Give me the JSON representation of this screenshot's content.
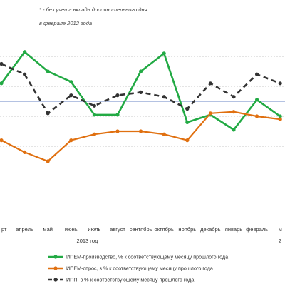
{
  "chart_data": {
    "type": "line",
    "footnote_line1": "* - без учета вклада дополнительного дня",
    "footnote_line2": "в феврале 2012 года",
    "categories": [
      "март",
      "апрель",
      "май",
      "июнь",
      "июль",
      "август",
      "сентябрь",
      "октябрь",
      "ноябрь",
      "декабрь",
      "январь",
      "февраль",
      "март"
    ],
    "x_labels": [
      "рт",
      "апрель",
      "май",
      "июнь",
      "июль",
      "август",
      "сентябрь",
      "октябрь",
      "ноябрь",
      "декабрь",
      "январь",
      "февраль",
      "м"
    ],
    "year_label": "2013 год",
    "year_label_2": "2",
    "series": [
      {
        "name": "ИПЕМ-производство, % к соответствующему месяцу прошлого года",
        "color": "#22aa44",
        "dash": "solid",
        "values": [
          1.2,
          3.3,
          2.0,
          1.3,
          -0.9,
          -0.9,
          2.0,
          3.2,
          -1.4,
          -0.9,
          -1.9,
          0.1,
          -1.0
        ]
      },
      {
        "name": "ИПЕМ-спрос, з % к соответствующему месяцу прошлого года",
        "color": "#e07010",
        "dash": "solid",
        "values": [
          -2.6,
          -3.4,
          -4.0,
          -2.6,
          -2.2,
          -2.0,
          -2.0,
          -2.2,
          -2.6,
          -0.8,
          -0.7,
          -1.0,
          -1.2
        ]
      },
      {
        "name": "ИПП, в % к соответствующему месяцу прошлого года",
        "color": "#333333",
        "dash": "dashed",
        "values": [
          2.5,
          1.8,
          -0.8,
          0.4,
          -0.3,
          0.4,
          0.6,
          0.3,
          -0.5,
          1.2,
          0.3,
          1.8,
          1.2
        ]
      }
    ],
    "ylim": [
      -4,
      4
    ],
    "y_gridlines": [
      -3,
      -1,
      1,
      3
    ],
    "zero_line": true,
    "legend_position": "bottom"
  }
}
